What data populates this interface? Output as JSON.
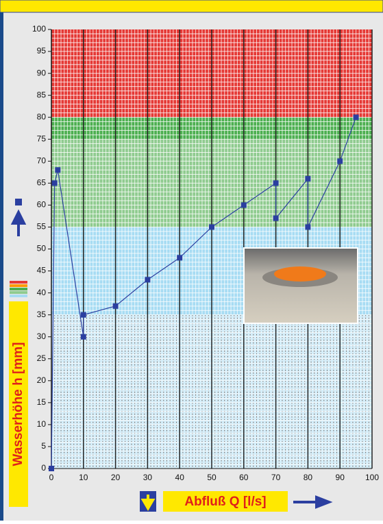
{
  "chart_data": {
    "type": "line",
    "x_label": "Abfluß Q [l/s]",
    "y_label": "Wasserhöhe h [mm]",
    "x": [
      0,
      1,
      2,
      10,
      10,
      20,
      30,
      40,
      50,
      60,
      70,
      70,
      80,
      80,
      90,
      95
    ],
    "series": [
      {
        "color": "#2b3fa0",
        "values": [
          0,
          65,
          68,
          30,
          35,
          37,
          43,
          48,
          55,
          60,
          65,
          57,
          66,
          55,
          70,
          80
        ]
      }
    ],
    "xlim": [
      0,
      100
    ],
    "ylim": [
      0,
      100
    ],
    "xticks": [
      0,
      10,
      20,
      30,
      40,
      50,
      60,
      70,
      80,
      90,
      100
    ],
    "yticks": [
      0,
      5,
      10,
      15,
      20,
      25,
      30,
      35,
      40,
      45,
      50,
      55,
      60,
      65,
      70,
      75,
      80,
      85,
      90,
      95,
      100
    ],
    "bands": [
      {
        "from": 0,
        "to": 35,
        "color": "#d4eefa"
      },
      {
        "from": 35,
        "to": 55,
        "color": "#a7dcf3"
      },
      {
        "from": 55,
        "to": 75,
        "color": "#8fcb8f"
      },
      {
        "from": 75,
        "to": 80,
        "color": "#4caf50"
      },
      {
        "from": 80,
        "to": 100,
        "color": "#e53935"
      }
    ]
  }
}
